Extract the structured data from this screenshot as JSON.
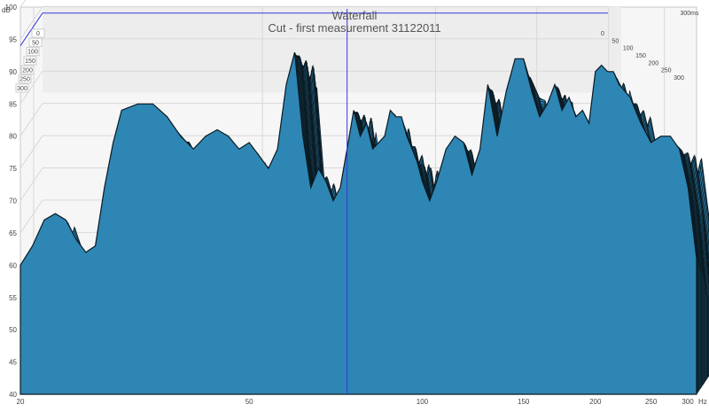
{
  "chart_data": {
    "type": "area",
    "title": "Waterfall",
    "subtitle": "Cut - first measurement 31122011",
    "y_unit": "dB",
    "x_unit": "Hz",
    "time_unit": "ms",
    "x_scale": "log",
    "xlim": [
      20,
      300
    ],
    "ylim": [
      40,
      100
    ],
    "x_ticks": [
      20,
      50,
      100,
      150,
      200,
      250,
      300
    ],
    "y_ticks": [
      40,
      45,
      50,
      55,
      60,
      65,
      70,
      75,
      80,
      85,
      90,
      95,
      100
    ],
    "time_ticks": [
      0,
      50,
      100,
      150,
      200,
      250,
      300
    ],
    "cursor_hz": 74,
    "cursor_db": 94,
    "slice_count": 30,
    "slice_decay_db_per_ms": 0.045,
    "x": [
      20,
      21,
      22,
      23,
      24,
      25,
      26,
      27,
      28,
      29,
      30,
      32,
      34,
      36,
      38,
      40,
      42,
      44,
      46,
      48,
      50,
      52,
      54,
      56,
      58,
      60,
      62,
      64,
      66,
      68,
      70,
      72,
      74,
      76,
      78,
      80,
      82,
      84,
      86,
      88,
      90,
      92,
      94,
      96,
      98,
      100,
      103,
      106,
      110,
      114,
      118,
      122,
      126,
      130,
      135,
      140,
      145,
      150,
      155,
      160,
      165,
      170,
      175,
      180,
      185,
      190,
      195,
      200,
      205,
      210,
      215,
      220,
      230,
      240,
      250,
      260,
      270,
      280,
      290,
      300
    ],
    "series": [
      {
        "values": [
          60,
          63,
          67,
          68,
          67,
          64,
          62,
          63,
          72,
          79,
          84,
          85,
          85,
          83,
          80,
          78,
          80,
          81,
          80,
          78,
          79,
          77,
          75,
          78,
          88,
          93,
          80,
          72,
          75,
          73,
          70,
          72,
          78,
          84,
          80,
          82,
          78,
          79,
          80,
          84,
          83,
          83,
          80,
          78,
          76,
          73,
          70,
          73,
          78,
          80,
          79,
          74,
          78,
          88,
          80,
          87,
          92,
          92,
          87,
          83,
          85,
          88,
          84,
          86,
          83,
          84,
          82,
          90,
          91,
          90,
          90,
          88,
          86,
          82,
          79,
          80,
          80,
          78,
          72,
          61
        ]
      }
    ]
  },
  "colors": {
    "fill": "#2e86b4",
    "line": "#0b1a22",
    "cursor": "#3838e0",
    "grid": "#d8d8d8",
    "panel": "#ededed"
  }
}
